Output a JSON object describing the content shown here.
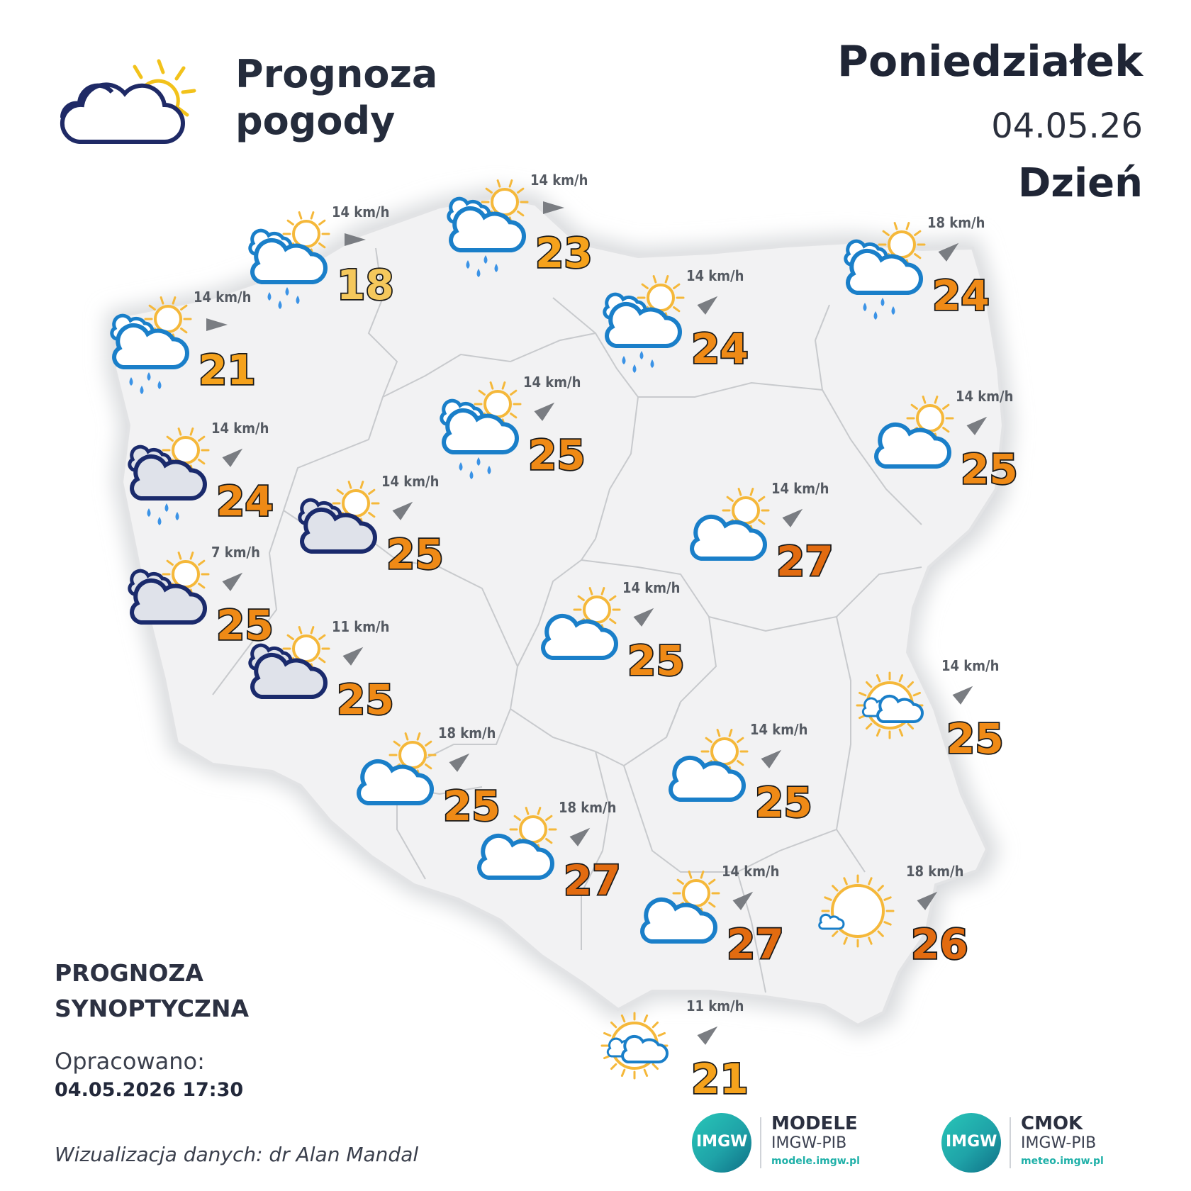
{
  "header": {
    "title": "Prognoza pogody",
    "day_name": "Poniedziałek",
    "date": "04.05.26",
    "period": "Dzień"
  },
  "footer": {
    "title": "PROGNOZA SYNOPTYCZNA",
    "prepared_label": "Opracowano:",
    "prepared_time": "04.05.2026 17:30",
    "credit": "Wizualizacja danych: dr Alan Mandal"
  },
  "logos": [
    {
      "name": "MODELE",
      "sub": "IMGW-PIB",
      "url": "modele.imgw.pl",
      "badge": "IMGW"
    },
    {
      "name": "CMOK",
      "sub": "IMGW-PIB",
      "url": "meteo.imgw.pl",
      "badge": "IMGW"
    }
  ],
  "colors": {
    "temp_cool": "#f5c85c",
    "temp_mild": "#f5a21c",
    "temp_warm": "#ef8a16",
    "temp_hot": "#e26b10",
    "cloud_light": "#1a7fc9",
    "cloud_dark": "#1a2a6c",
    "sun": "#f5b83a",
    "rain": "#3b93e6"
  },
  "stations": [
    {
      "id": "szczecin-coast",
      "icon": "sun-cloud-rain",
      "temp": "21",
      "wind": "14 km/h",
      "wind_dir_deg": 0
    },
    {
      "id": "koszalin",
      "icon": "sun-cloud-rain",
      "temp": "18",
      "wind": "14 km/h",
      "wind_dir_deg": 0
    },
    {
      "id": "gdansk",
      "icon": "sun-cloud-rain",
      "temp": "23",
      "wind": "14 km/h",
      "wind_dir_deg": 0
    },
    {
      "id": "olsztyn",
      "icon": "sun-cloud-rain",
      "temp": "24",
      "wind": "14 km/h",
      "wind_dir_deg": -40
    },
    {
      "id": "suwalki",
      "icon": "sun-cloud-rain",
      "temp": "24",
      "wind": "18 km/h",
      "wind_dir_deg": -40
    },
    {
      "id": "szczecin",
      "icon": "sun-cloud-dark-rain",
      "temp": "24",
      "wind": "14 km/h",
      "wind_dir_deg": -40
    },
    {
      "id": "bydgoszcz",
      "icon": "sun-cloud-rain",
      "temp": "25",
      "wind": "14 km/h",
      "wind_dir_deg": -40
    },
    {
      "id": "bialystok",
      "icon": "sun-cloud",
      "temp": "25",
      "wind": "14 km/h",
      "wind_dir_deg": -40
    },
    {
      "id": "pila",
      "icon": "sun-cloud-dark",
      "temp": "25",
      "wind": "14 km/h",
      "wind_dir_deg": -40
    },
    {
      "id": "warszawa",
      "icon": "sun-cloud",
      "temp": "27",
      "wind": "14 km/h",
      "wind_dir_deg": -40
    },
    {
      "id": "gorzow",
      "icon": "sun-cloud-dark",
      "temp": "25",
      "wind": "7 km/h",
      "wind_dir_deg": -40
    },
    {
      "id": "lodz",
      "icon": "sun-cloud",
      "temp": "25",
      "wind": "14 km/h",
      "wind_dir_deg": -40
    },
    {
      "id": "poznan-south",
      "icon": "sun-cloud-dark",
      "temp": "25",
      "wind": "11 km/h",
      "wind_dir_deg": -40
    },
    {
      "id": "lublin",
      "icon": "sun-small-clouds",
      "temp": "25",
      "wind": "14 km/h",
      "wind_dir_deg": -40
    },
    {
      "id": "wroclaw",
      "icon": "sun-cloud",
      "temp": "25",
      "wind": "18 km/h",
      "wind_dir_deg": -40
    },
    {
      "id": "kielce",
      "icon": "sun-cloud",
      "temp": "25",
      "wind": "14 km/h",
      "wind_dir_deg": -40
    },
    {
      "id": "katowice",
      "icon": "sun-cloud",
      "temp": "27",
      "wind": "18 km/h",
      "wind_dir_deg": -40
    },
    {
      "id": "rzeszow",
      "icon": "sun-mini-cloud",
      "temp": "26",
      "wind": "18 km/h",
      "wind_dir_deg": -40
    },
    {
      "id": "krakow",
      "icon": "sun-cloud",
      "temp": "27",
      "wind": "14 km/h",
      "wind_dir_deg": -40
    },
    {
      "id": "zakopane",
      "icon": "sun-small-clouds",
      "temp": "21",
      "wind": "11 km/h",
      "wind_dir_deg": -40
    }
  ]
}
